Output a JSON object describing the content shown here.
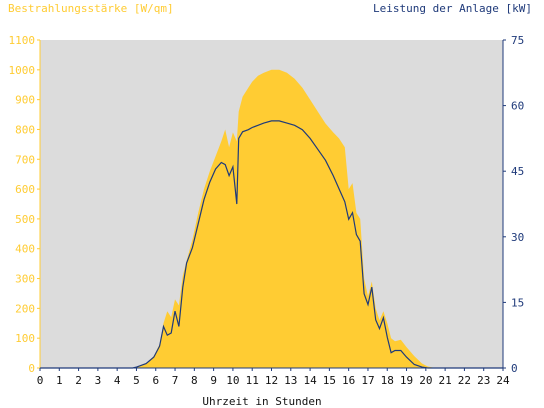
{
  "chart_data": {
    "type": "area",
    "title": "",
    "xlabel": "Uhrzeit in Stunden",
    "ylabel_left": "Bestrahlungsstärke [W/qm]",
    "ylabel_right": "Leistung der Anlage [kW]",
    "xlim": [
      0,
      24
    ],
    "ylim_left": [
      0,
      1100
    ],
    "ylim_right": [
      0,
      75
    ],
    "x_ticks": [
      "0",
      "1",
      "2",
      "3",
      "4",
      "5",
      "6",
      "7",
      "8",
      "9",
      "10",
      "11",
      "12",
      "13",
      "14",
      "15",
      "16",
      "17",
      "18",
      "19",
      "20",
      "21",
      "22",
      "23",
      "24"
    ],
    "y_left_ticks": [
      "0",
      "100",
      "200",
      "300",
      "400",
      "500",
      "600",
      "700",
      "800",
      "900",
      "1000",
      "1100"
    ],
    "y_right_ticks": [
      "0",
      "15",
      "30",
      "45",
      "60",
      "75"
    ],
    "grid": false,
    "colors": {
      "plot_background": "#dcdcdc",
      "irradiance": "#ffcc33",
      "power": "#1f3a7a",
      "left_axis": "#ffcc33",
      "right_axis": "#1f3a7a"
    },
    "series": [
      {
        "name": "Bestrahlungsstärke [W/qm]",
        "axis": "left",
        "x": [
          0,
          4.8,
          5.0,
          5.5,
          5.9,
          6.2,
          6.4,
          6.6,
          6.8,
          7.0,
          7.2,
          7.4,
          7.6,
          7.9,
          8.2,
          8.5,
          8.8,
          9.1,
          9.4,
          9.6,
          9.8,
          10.0,
          10.2,
          10.3,
          10.5,
          10.8,
          11.0,
          11.3,
          11.6,
          12.0,
          12.4,
          12.8,
          13.2,
          13.6,
          14.0,
          14.4,
          14.8,
          15.2,
          15.5,
          15.8,
          16.0,
          16.2,
          16.4,
          16.6,
          16.8,
          17.0,
          17.2,
          17.4,
          17.6,
          17.8,
          18.0,
          18.2,
          18.4,
          18.7,
          19.0,
          19.4,
          19.8,
          20.1,
          20.5,
          24
        ],
        "values": [
          0,
          0,
          3,
          15,
          40,
          80,
          150,
          190,
          170,
          230,
          210,
          310,
          360,
          430,
          520,
          600,
          660,
          710,
          760,
          800,
          740,
          790,
          760,
          860,
          910,
          940,
          960,
          980,
          990,
          1000,
          1000,
          990,
          970,
          940,
          900,
          860,
          820,
          790,
          770,
          740,
          600,
          620,
          520,
          500,
          300,
          240,
          290,
          200,
          160,
          190,
          150,
          100,
          90,
          95,
          70,
          40,
          15,
          5,
          0,
          0
        ]
      },
      {
        "name": "Leistung der Anlage [kW]",
        "axis": "right",
        "x": [
          0,
          4.8,
          5.0,
          5.5,
          5.9,
          6.2,
          6.4,
          6.6,
          6.8,
          7.0,
          7.2,
          7.4,
          7.6,
          7.9,
          8.2,
          8.5,
          8.8,
          9.1,
          9.4,
          9.6,
          9.8,
          10.0,
          10.2,
          10.3,
          10.5,
          10.8,
          11.0,
          11.3,
          11.6,
          12.0,
          12.4,
          12.8,
          13.2,
          13.6,
          14.0,
          14.4,
          14.8,
          15.2,
          15.5,
          15.8,
          16.0,
          16.2,
          16.4,
          16.6,
          16.8,
          17.0,
          17.2,
          17.4,
          17.6,
          17.8,
          18.0,
          18.2,
          18.4,
          18.7,
          19.0,
          19.4,
          19.8,
          20.1,
          20.5,
          24
        ],
        "values": [
          0,
          0,
          0.2,
          1,
          2.5,
          5,
          9.5,
          7.5,
          8,
          13,
          9.5,
          18.5,
          24,
          27.5,
          33,
          38.5,
          42.5,
          45.5,
          47,
          46.5,
          44,
          46,
          37.5,
          52.5,
          54,
          54.5,
          55,
          55.5,
          56,
          56.5,
          56.5,
          56,
          55.5,
          54.5,
          52.5,
          50,
          47.5,
          44,
          41,
          38,
          34,
          35.5,
          30.5,
          29,
          17,
          14.5,
          18.5,
          11,
          9,
          11.5,
          7,
          3.5,
          4,
          4,
          2.5,
          0.8,
          0.2,
          0,
          0,
          0
        ]
      }
    ]
  }
}
